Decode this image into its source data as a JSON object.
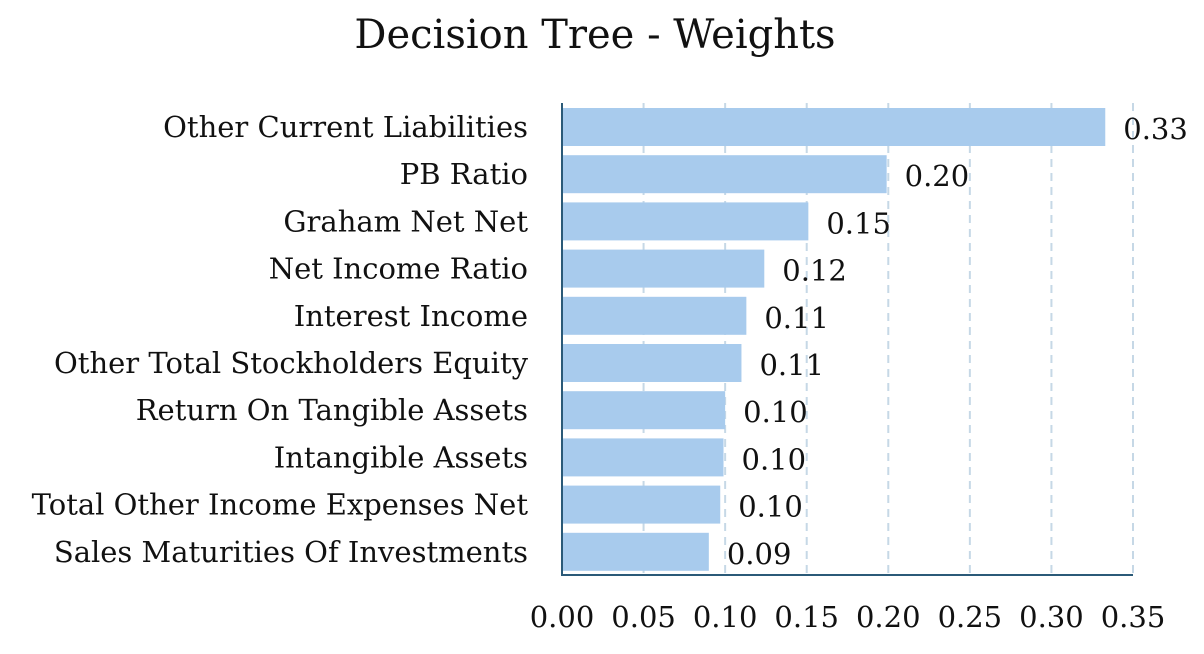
{
  "chart_data": {
    "type": "bar",
    "orientation": "horizontal",
    "title": "Decision Tree - Weights",
    "xlabel": "",
    "ylabel": "",
    "categories": [
      "Other Current Liabilities",
      "PB Ratio",
      "Graham Net Net",
      "Net Income Ratio",
      "Interest Income",
      "Other Total Stockholders Equity",
      "Return On Tangible Assets",
      "Intangible Assets",
      "Total Other Income Expenses Net",
      "Sales Maturities Of Investments"
    ],
    "values": [
      0.333,
      0.199,
      0.151,
      0.124,
      0.113,
      0.11,
      0.1,
      0.099,
      0.097,
      0.09
    ],
    "data_labels": [
      "0.33",
      "0.20",
      "0.15",
      "0.12",
      "0.11",
      "0.11",
      "0.10",
      "0.10",
      "0.10",
      "0.09"
    ],
    "xlim": [
      0,
      0.35
    ],
    "xticks": [
      0.0,
      0.05,
      0.1,
      0.15,
      0.2,
      0.25,
      0.3,
      0.35
    ],
    "xtick_labels": [
      "0.00",
      "0.05",
      "0.10",
      "0.15",
      "0.20",
      "0.25",
      "0.30",
      "0.35"
    ],
    "grid": "vertical dashed",
    "legend": "none",
    "colors": {
      "bar": "#a8cbed",
      "axis": "#2b5a78",
      "grid": "#c6d8e6",
      "text": "#111111"
    }
  }
}
